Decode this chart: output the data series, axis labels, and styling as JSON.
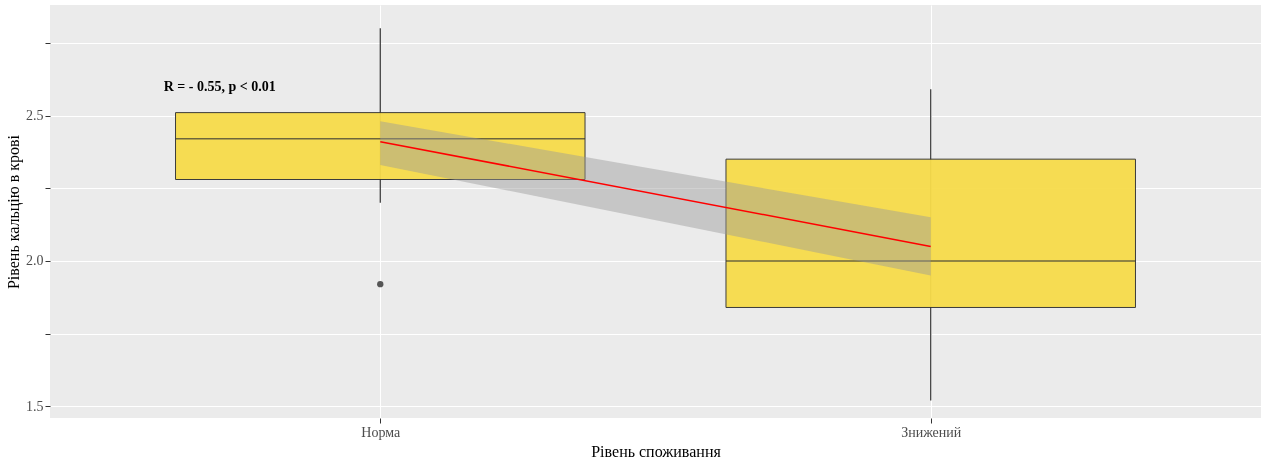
{
  "chart_data": {
    "type": "box",
    "xlabel": "Рівень споживання",
    "ylabel": "Рівень кальцію в крові",
    "categories": [
      "Норма",
      "Знижений"
    ],
    "ylim": [
      1.46,
      2.88
    ],
    "yticks": [
      1.5,
      {
        "value": 1.75,
        "label": null
      },
      {
        "value": 2,
        "label": "2.0"
      },
      {
        "value": 2.25,
        "label": null
      },
      2.5,
      {
        "value": 2.75,
        "label": null
      }
    ],
    "grid": true,
    "annotations": [
      "R = - 0.55, p < 0.01"
    ],
    "series": [
      {
        "color": "#f7dc4a",
        "boxes": [
          {
            "low": 2.2,
            "q1": 2.28,
            "median": 2.42,
            "q3": 2.51,
            "high": 2.8,
            "outliers": [
              1.92
            ]
          },
          {
            "low": 1.52,
            "q1": 1.84,
            "median": 2.0,
            "q3": 2.35,
            "high": 2.59
          }
        ]
      },
      {
        "type": "line",
        "color": "#ff0000",
        "x": [
          "Норма",
          "Знижений"
        ],
        "values": [
          2.41,
          2.05
        ],
        "lower": [
          2.33,
          1.95
        ],
        "upper": [
          2.48,
          2.15
        ]
      }
    ]
  }
}
